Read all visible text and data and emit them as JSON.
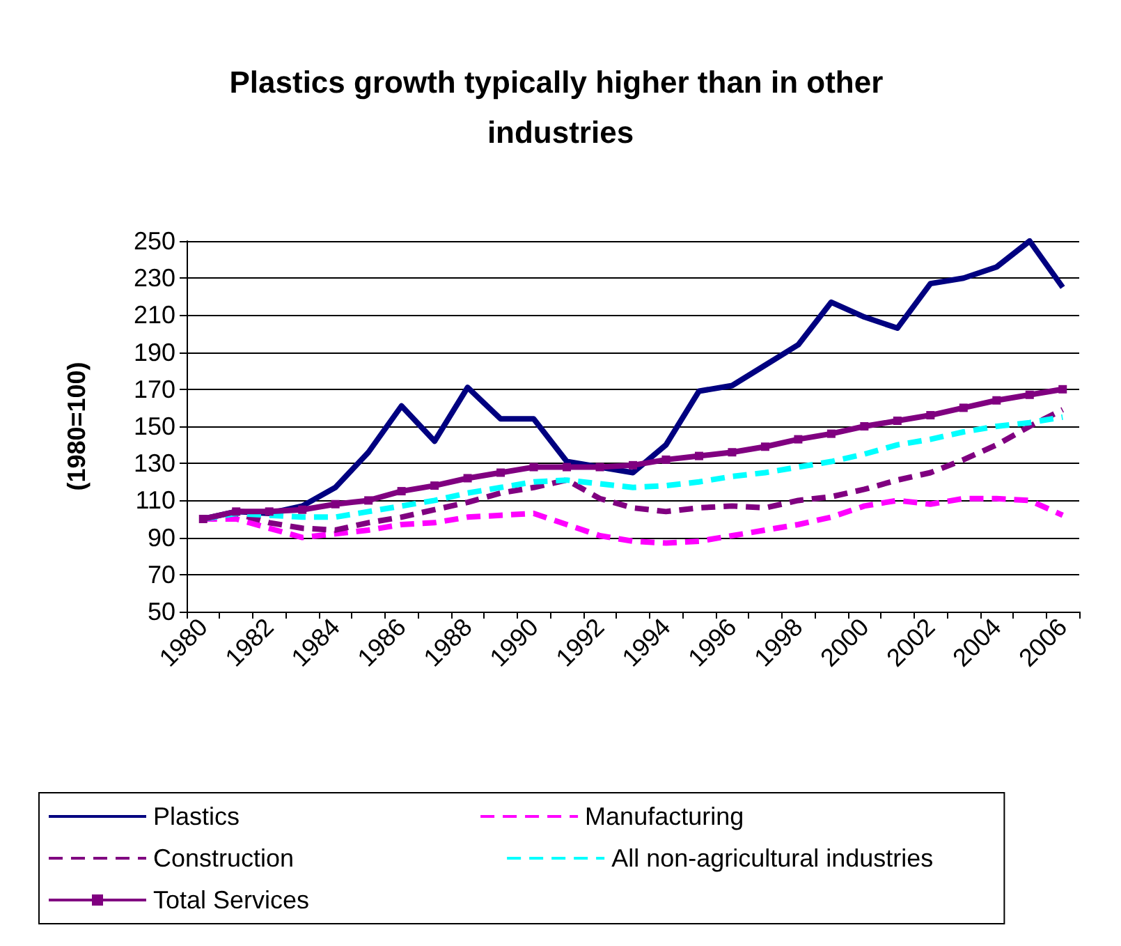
{
  "chart_data": {
    "type": "line",
    "title": "Plastics growth typically higher than in other industries",
    "ylabel": "(1980=100)",
    "categories": [
      "1980",
      null,
      "1982",
      null,
      "1984",
      null,
      "1986",
      null,
      "1988",
      null,
      "1990",
      null,
      "1992",
      null,
      "1994",
      null,
      "1996",
      null,
      "1998",
      null,
      "2000",
      null,
      "2002",
      null,
      "2004",
      null,
      "2006"
    ],
    "series": [
      {
        "name": "Plastics",
        "color": "#000080",
        "line_style": "solid",
        "marker": "none",
        "values": [
          100,
          104,
          103,
          107,
          117,
          136,
          161,
          142,
          171,
          154,
          154,
          131,
          128,
          125,
          140,
          169,
          172,
          183,
          194,
          217,
          209,
          203,
          227,
          230,
          236,
          250,
          225
        ]
      },
      {
        "name": "Manufacturing",
        "color": "#ff00ff",
        "line_style": "dashed",
        "marker": "none",
        "values": [
          100,
          100,
          95,
          90,
          92,
          94,
          97,
          98,
          101,
          102,
          103,
          97,
          91,
          88,
          87,
          88,
          91,
          94,
          97,
          101,
          107,
          110,
          108,
          111,
          111,
          110,
          102
        ]
      },
      {
        "name": "Construction",
        "color": "#800080",
        "line_style": "dashed",
        "marker": "none",
        "values": [
          100,
          103,
          98,
          95,
          94,
          98,
          101,
          105,
          109,
          114,
          117,
          121,
          111,
          106,
          104,
          106,
          107,
          106,
          110,
          112,
          116,
          121,
          125,
          132,
          140,
          150,
          159
        ]
      },
      {
        "name": "All non-agricultural industries",
        "color": "#00ffff",
        "line_style": "dashed",
        "marker": "none",
        "values": [
          100,
          103,
          102,
          101,
          101,
          104,
          107,
          110,
          114,
          117,
          120,
          121,
          119,
          117,
          118,
          120,
          123,
          125,
          128,
          131,
          135,
          140,
          143,
          147,
          150,
          152,
          155
        ]
      },
      {
        "name": "Total Services",
        "color": "#800080",
        "line_style": "solid",
        "marker": "square",
        "values": [
          100,
          104,
          104,
          105,
          108,
          110,
          115,
          118,
          122,
          125,
          128,
          128,
          128,
          129,
          132,
          134,
          136,
          139,
          143,
          146,
          150,
          153,
          156,
          160,
          164,
          167,
          170
        ]
      }
    ],
    "ylim": [
      50,
      250
    ],
    "yticks": [
      50,
      70,
      90,
      110,
      130,
      150,
      170,
      190,
      210,
      230,
      250
    ],
    "grid": "y",
    "legend": "bottom"
  }
}
